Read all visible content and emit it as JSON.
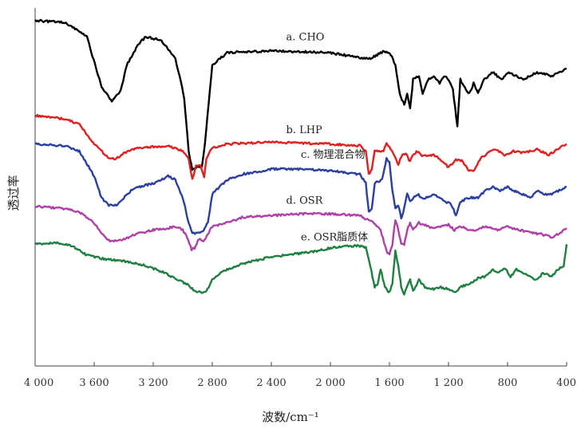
{
  "chart_data": {
    "type": "line",
    "title": "",
    "xlabel": "波数/cm⁻¹",
    "ylabel": "透过率",
    "xlim": [
      4000,
      400
    ],
    "x_reversed": true,
    "x_ticks": [
      4000,
      3600,
      3200,
      2800,
      2400,
      2000,
      1600,
      1200,
      800,
      400
    ],
    "x_tick_labels": [
      "4 000",
      "3 600",
      "3 200",
      "2 800",
      "2 400",
      "2 000",
      "1 600",
      "1 200",
      "800",
      "400"
    ],
    "y_unit": "arbitrary transmittance (curves vertically offset)",
    "grid": false,
    "legend": "inline labels above each curve",
    "series": [
      {
        "name": "a. CHO",
        "color": "#000000",
        "points": [
          [
            4000,
            0.965
          ],
          [
            3800,
            0.96
          ],
          [
            3650,
            0.92
          ],
          [
            3550,
            0.78
          ],
          [
            3480,
            0.74
          ],
          [
            3420,
            0.77
          ],
          [
            3380,
            0.84
          ],
          [
            3300,
            0.9
          ],
          [
            3250,
            0.92
          ],
          [
            3150,
            0.91
          ],
          [
            3050,
            0.86
          ],
          [
            2990,
            0.75
          ],
          [
            2960,
            0.6
          ],
          [
            2935,
            0.545
          ],
          [
            2900,
            0.56
          ],
          [
            2870,
            0.555
          ],
          [
            2850,
            0.62
          ],
          [
            2800,
            0.84
          ],
          [
            2700,
            0.875
          ],
          [
            2400,
            0.88
          ],
          [
            2000,
            0.875
          ],
          [
            1780,
            0.86
          ],
          [
            1720,
            0.86
          ],
          [
            1660,
            0.875
          ],
          [
            1620,
            0.88
          ],
          [
            1590,
            0.87
          ],
          [
            1560,
            0.84
          ],
          [
            1530,
            0.76
          ],
          [
            1500,
            0.73
          ],
          [
            1480,
            0.76
          ],
          [
            1460,
            0.72
          ],
          [
            1440,
            0.8
          ],
          [
            1400,
            0.81
          ],
          [
            1375,
            0.76
          ],
          [
            1340,
            0.8
          ],
          [
            1300,
            0.81
          ],
          [
            1260,
            0.79
          ],
          [
            1230,
            0.81
          ],
          [
            1200,
            0.8
          ],
          [
            1170,
            0.77
          ],
          [
            1140,
            0.67
          ],
          [
            1120,
            0.8
          ],
          [
            1060,
            0.76
          ],
          [
            1030,
            0.79
          ],
          [
            1000,
            0.76
          ],
          [
            960,
            0.8
          ],
          [
            900,
            0.82
          ],
          [
            840,
            0.8
          ],
          [
            800,
            0.82
          ],
          [
            740,
            0.81
          ],
          [
            700,
            0.8
          ],
          [
            600,
            0.82
          ],
          [
            500,
            0.81
          ],
          [
            450,
            0.82
          ],
          [
            400,
            0.83
          ]
        ]
      },
      {
        "name": "b. LHP",
        "color": "#e02020",
        "points": [
          [
            4000,
            0.7
          ],
          [
            3800,
            0.69
          ],
          [
            3700,
            0.675
          ],
          [
            3600,
            0.62
          ],
          [
            3500,
            0.58
          ],
          [
            3450,
            0.58
          ],
          [
            3400,
            0.595
          ],
          [
            3300,
            0.61
          ],
          [
            3100,
            0.615
          ],
          [
            3000,
            0.6
          ],
          [
            2960,
            0.58
          ],
          [
            2935,
            0.52
          ],
          [
            2910,
            0.56
          ],
          [
            2880,
            0.56
          ],
          [
            2855,
            0.53
          ],
          [
            2840,
            0.58
          ],
          [
            2800,
            0.61
          ],
          [
            2700,
            0.62
          ],
          [
            2400,
            0.625
          ],
          [
            2000,
            0.62
          ],
          [
            1800,
            0.615
          ],
          [
            1760,
            0.6
          ],
          [
            1740,
            0.535
          ],
          [
            1720,
            0.55
          ],
          [
            1700,
            0.6
          ],
          [
            1640,
            0.6
          ],
          [
            1620,
            0.625
          ],
          [
            1600,
            0.61
          ],
          [
            1580,
            0.6
          ],
          [
            1560,
            0.58
          ],
          [
            1540,
            0.56
          ],
          [
            1520,
            0.585
          ],
          [
            1490,
            0.595
          ],
          [
            1460,
            0.57
          ],
          [
            1440,
            0.59
          ],
          [
            1410,
            0.6
          ],
          [
            1380,
            0.585
          ],
          [
            1300,
            0.59
          ],
          [
            1260,
            0.58
          ],
          [
            1200,
            0.555
          ],
          [
            1150,
            0.575
          ],
          [
            1110,
            0.575
          ],
          [
            1060,
            0.545
          ],
          [
            1030,
            0.545
          ],
          [
            980,
            0.58
          ],
          [
            920,
            0.6
          ],
          [
            880,
            0.605
          ],
          [
            820,
            0.59
          ],
          [
            760,
            0.6
          ],
          [
            700,
            0.595
          ],
          [
            650,
            0.6
          ],
          [
            600,
            0.605
          ],
          [
            520,
            0.59
          ],
          [
            480,
            0.6
          ],
          [
            430,
            0.615
          ],
          [
            400,
            0.62
          ]
        ]
      },
      {
        "name": "c. 物理混合物",
        "color": "#2a3fa0",
        "points": [
          [
            4000,
            0.62
          ],
          [
            3800,
            0.615
          ],
          [
            3700,
            0.6
          ],
          [
            3600,
            0.53
          ],
          [
            3550,
            0.47
          ],
          [
            3500,
            0.45
          ],
          [
            3450,
            0.45
          ],
          [
            3400,
            0.47
          ],
          [
            3350,
            0.49
          ],
          [
            3300,
            0.5
          ],
          [
            3200,
            0.51
          ],
          [
            3100,
            0.53
          ],
          [
            3050,
            0.52
          ],
          [
            3000,
            0.47
          ],
          [
            2960,
            0.4
          ],
          [
            2935,
            0.37
          ],
          [
            2900,
            0.37
          ],
          [
            2860,
            0.38
          ],
          [
            2830,
            0.4
          ],
          [
            2800,
            0.48
          ],
          [
            2700,
            0.52
          ],
          [
            2600,
            0.535
          ],
          [
            2400,
            0.55
          ],
          [
            2200,
            0.55
          ],
          [
            2000,
            0.545
          ],
          [
            1800,
            0.535
          ],
          [
            1760,
            0.51
          ],
          [
            1740,
            0.43
          ],
          [
            1720,
            0.44
          ],
          [
            1700,
            0.51
          ],
          [
            1650,
            0.52
          ],
          [
            1620,
            0.58
          ],
          [
            1600,
            0.57
          ],
          [
            1580,
            0.49
          ],
          [
            1560,
            0.44
          ],
          [
            1540,
            0.45
          ],
          [
            1520,
            0.41
          ],
          [
            1500,
            0.44
          ],
          [
            1480,
            0.48
          ],
          [
            1460,
            0.46
          ],
          [
            1440,
            0.47
          ],
          [
            1410,
            0.48
          ],
          [
            1380,
            0.47
          ],
          [
            1340,
            0.47
          ],
          [
            1300,
            0.48
          ],
          [
            1260,
            0.47
          ],
          [
            1220,
            0.46
          ],
          [
            1180,
            0.45
          ],
          [
            1150,
            0.42
          ],
          [
            1120,
            0.46
          ],
          [
            1060,
            0.47
          ],
          [
            1000,
            0.47
          ],
          [
            950,
            0.49
          ],
          [
            900,
            0.5
          ],
          [
            850,
            0.49
          ],
          [
            800,
            0.5
          ],
          [
            760,
            0.49
          ],
          [
            700,
            0.48
          ],
          [
            640,
            0.47
          ],
          [
            600,
            0.49
          ],
          [
            550,
            0.48
          ],
          [
            500,
            0.48
          ],
          [
            450,
            0.49
          ],
          [
            400,
            0.5
          ]
        ]
      },
      {
        "name": "d. OSR",
        "color": "#b040a8",
        "points": [
          [
            4000,
            0.445
          ],
          [
            3800,
            0.44
          ],
          [
            3700,
            0.43
          ],
          [
            3600,
            0.4
          ],
          [
            3550,
            0.37
          ],
          [
            3500,
            0.35
          ],
          [
            3450,
            0.35
          ],
          [
            3400,
            0.355
          ],
          [
            3300,
            0.37
          ],
          [
            3200,
            0.38
          ],
          [
            3100,
            0.385
          ],
          [
            3050,
            0.39
          ],
          [
            3000,
            0.38
          ],
          [
            2970,
            0.36
          ],
          [
            2940,
            0.325
          ],
          [
            2920,
            0.33
          ],
          [
            2890,
            0.355
          ],
          [
            2860,
            0.35
          ],
          [
            2840,
            0.36
          ],
          [
            2800,
            0.39
          ],
          [
            2700,
            0.4
          ],
          [
            2600,
            0.415
          ],
          [
            2400,
            0.42
          ],
          [
            2200,
            0.425
          ],
          [
            2000,
            0.425
          ],
          [
            1800,
            0.42
          ],
          [
            1760,
            0.41
          ],
          [
            1720,
            0.405
          ],
          [
            1660,
            0.38
          ],
          [
            1620,
            0.32
          ],
          [
            1600,
            0.31
          ],
          [
            1580,
            0.34
          ],
          [
            1560,
            0.41
          ],
          [
            1540,
            0.38
          ],
          [
            1520,
            0.34
          ],
          [
            1500,
            0.34
          ],
          [
            1480,
            0.38
          ],
          [
            1460,
            0.4
          ],
          [
            1440,
            0.38
          ],
          [
            1400,
            0.4
          ],
          [
            1340,
            0.39
          ],
          [
            1300,
            0.385
          ],
          [
            1260,
            0.39
          ],
          [
            1200,
            0.395
          ],
          [
            1160,
            0.38
          ],
          [
            1120,
            0.39
          ],
          [
            1060,
            0.38
          ],
          [
            1000,
            0.38
          ],
          [
            960,
            0.39
          ],
          [
            900,
            0.385
          ],
          [
            860,
            0.38
          ],
          [
            820,
            0.39
          ],
          [
            780,
            0.385
          ],
          [
            720,
            0.38
          ],
          [
            660,
            0.375
          ],
          [
            600,
            0.37
          ],
          [
            540,
            0.365
          ],
          [
            500,
            0.36
          ],
          [
            450,
            0.37
          ],
          [
            400,
            0.385
          ]
        ]
      },
      {
        "name": "e. OSR脂质体",
        "color": "#1e8040",
        "points": [
          [
            4000,
            0.34
          ],
          [
            3850,
            0.345
          ],
          [
            3750,
            0.335
          ],
          [
            3650,
            0.31
          ],
          [
            3550,
            0.3
          ],
          [
            3450,
            0.295
          ],
          [
            3350,
            0.29
          ],
          [
            3250,
            0.28
          ],
          [
            3150,
            0.265
          ],
          [
            3050,
            0.245
          ],
          [
            3000,
            0.235
          ],
          [
            2960,
            0.225
          ],
          [
            2920,
            0.21
          ],
          [
            2880,
            0.205
          ],
          [
            2840,
            0.21
          ],
          [
            2800,
            0.24
          ],
          [
            2750,
            0.26
          ],
          [
            2700,
            0.27
          ],
          [
            2600,
            0.285
          ],
          [
            2500,
            0.295
          ],
          [
            2400,
            0.305
          ],
          [
            2300,
            0.31
          ],
          [
            2200,
            0.315
          ],
          [
            2100,
            0.32
          ],
          [
            2000,
            0.33
          ],
          [
            1900,
            0.335
          ],
          [
            1800,
            0.335
          ],
          [
            1760,
            0.33
          ],
          [
            1730,
            0.28
          ],
          [
            1700,
            0.22
          ],
          [
            1680,
            0.23
          ],
          [
            1660,
            0.27
          ],
          [
            1630,
            0.22
          ],
          [
            1600,
            0.205
          ],
          [
            1580,
            0.23
          ],
          [
            1560,
            0.32
          ],
          [
            1540,
            0.28
          ],
          [
            1520,
            0.22
          ],
          [
            1500,
            0.2
          ],
          [
            1480,
            0.22
          ],
          [
            1460,
            0.24
          ],
          [
            1440,
            0.21
          ],
          [
            1400,
            0.24
          ],
          [
            1360,
            0.22
          ],
          [
            1300,
            0.215
          ],
          [
            1260,
            0.22
          ],
          [
            1200,
            0.215
          ],
          [
            1150,
            0.205
          ],
          [
            1120,
            0.22
          ],
          [
            1060,
            0.23
          ],
          [
            1000,
            0.245
          ],
          [
            950,
            0.25
          ],
          [
            900,
            0.27
          ],
          [
            860,
            0.26
          ],
          [
            820,
            0.275
          ],
          [
            780,
            0.25
          ],
          [
            740,
            0.27
          ],
          [
            700,
            0.26
          ],
          [
            650,
            0.25
          ],
          [
            600,
            0.24
          ],
          [
            560,
            0.26
          ],
          [
            500,
            0.25
          ],
          [
            460,
            0.27
          ],
          [
            420,
            0.28
          ],
          [
            400,
            0.34
          ]
        ]
      }
    ]
  }
}
